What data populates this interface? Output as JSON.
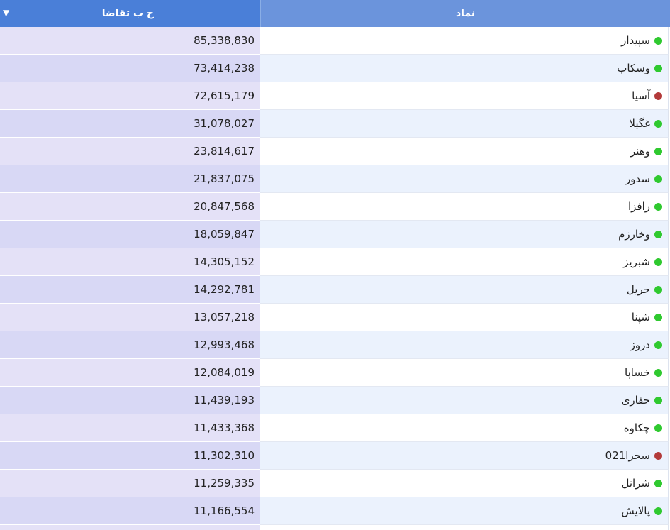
{
  "header": {
    "value_label": "ح ب تقاضا",
    "symbol_label": "نماد",
    "sort_icon": "sort-desc-icon"
  },
  "colors": {
    "status_up": "#2fc92f",
    "status_down": "#b33a3a",
    "header_value_bg": "#4a7fd8",
    "header_symbol_bg": "#6b94dc"
  },
  "rows": [
    {
      "value": "85,338,830",
      "symbol": "سپیدار",
      "status": "up"
    },
    {
      "value": "73,414,238",
      "symbol": "وسکاب",
      "status": "up"
    },
    {
      "value": "72,615,179",
      "symbol": "آسیا",
      "status": "down"
    },
    {
      "value": "31,078,027",
      "symbol": "غگیلا",
      "status": "up"
    },
    {
      "value": "23,814,617",
      "symbol": "وهنر",
      "status": "up"
    },
    {
      "value": "21,837,075",
      "symbol": "سدور",
      "status": "up"
    },
    {
      "value": "20,847,568",
      "symbol": "رافزا",
      "status": "up"
    },
    {
      "value": "18,059,847",
      "symbol": "وخارزم",
      "status": "up"
    },
    {
      "value": "14,305,152",
      "symbol": "شبریز",
      "status": "up"
    },
    {
      "value": "14,292,781",
      "symbol": "حریل",
      "status": "up"
    },
    {
      "value": "13,057,218",
      "symbol": "شپنا",
      "status": "up"
    },
    {
      "value": "12,993,468",
      "symbol": "دروز",
      "status": "up"
    },
    {
      "value": "12,084,019",
      "symbol": "خساپا",
      "status": "up"
    },
    {
      "value": "11,439,193",
      "symbol": "حفاری",
      "status": "up"
    },
    {
      "value": "11,433,368",
      "symbol": "چکاوه",
      "status": "up"
    },
    {
      "value": "11,302,310",
      "symbol": "سحرا021",
      "status": "down"
    },
    {
      "value": "11,259,335",
      "symbol": "شرانل",
      "status": "up"
    },
    {
      "value": "11,166,554",
      "symbol": "پالایش",
      "status": "up"
    }
  ]
}
